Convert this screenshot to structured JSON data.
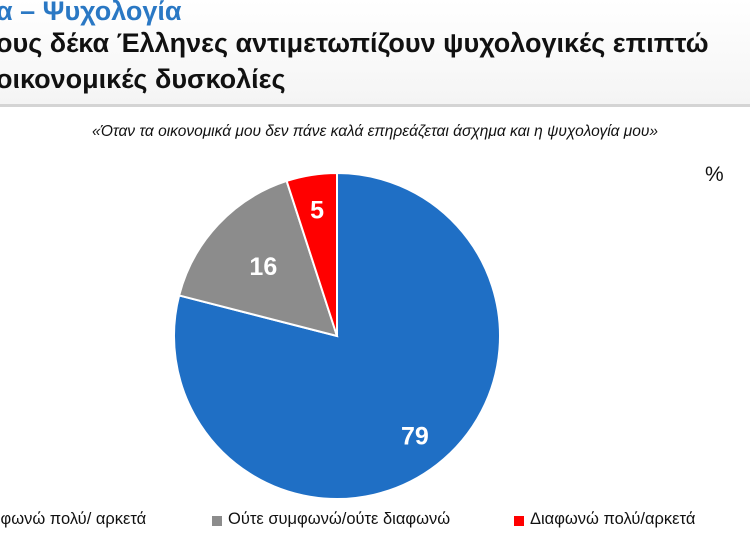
{
  "header": {
    "section": "α – Ψυχολογία",
    "title_line1": "ους δέκα Έλληνες αντιμετωπίζουν ψυχολογικές επιπτώ",
    "title_line2": "οικονομικές δυσκολίες"
  },
  "unit": "%",
  "colors": {
    "agree": "#1f6fc5",
    "neutral": "#8c8c8c",
    "disagree": "#ff0000",
    "section": "#2a78c4"
  },
  "chart_data": {
    "type": "pie",
    "title": "«Όταν τα οικονομικά μου δεν πάνε καλά επηρεάζεται άσχημα και η ψυχολογία μου»",
    "unit": "%",
    "slices": [
      {
        "label": "μφωνώ πολύ/ αρκετά",
        "value": 79,
        "color": "#1f6fc5"
      },
      {
        "label": "Ούτε συμφωνώ/ούτε διαφωνώ",
        "value": 16,
        "color": "#8c8c8c"
      },
      {
        "label": "Διαφωνώ πολύ/αρκετά",
        "value": 5,
        "color": "#ff0000"
      }
    ],
    "start_angle_deg": 0,
    "direction": "clockwise",
    "legend_position": "bottom"
  }
}
